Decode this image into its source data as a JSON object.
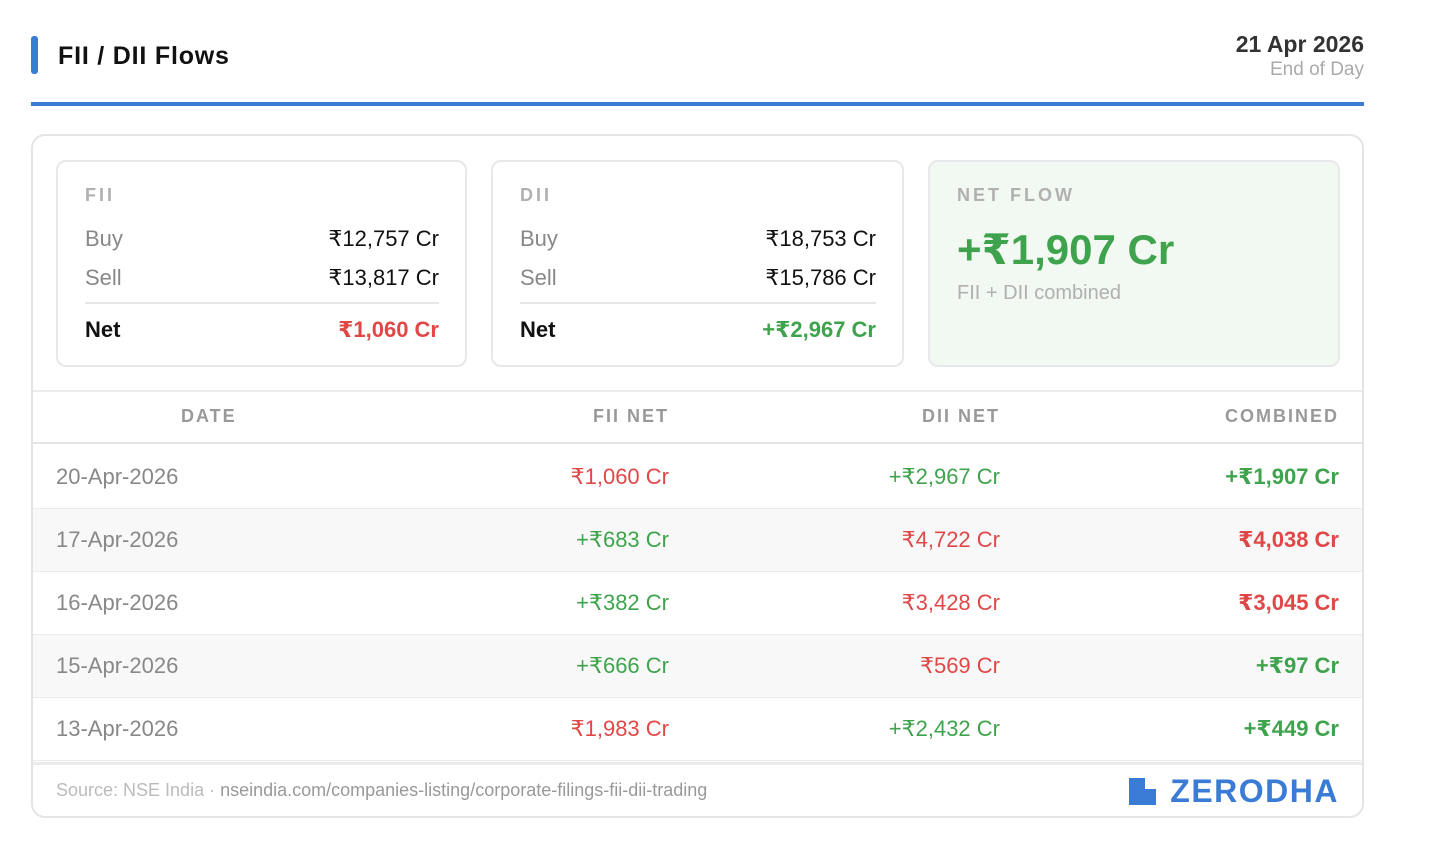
{
  "header": {
    "title": "FII / DII Flows",
    "date": "21 Apr 2026",
    "subtitle": "End of Day"
  },
  "summary": {
    "fii": {
      "label": "FII",
      "buy_label": "Buy",
      "buy": "₹12,757 Cr",
      "sell_label": "Sell",
      "sell": "₹13,817 Cr",
      "net_label": "Net",
      "net": "₹1,060 Cr"
    },
    "dii": {
      "label": "DII",
      "buy_label": "Buy",
      "buy": "₹18,753 Cr",
      "sell_label": "Sell",
      "sell": "₹15,786 Cr",
      "net_label": "Net",
      "net": "+₹2,967 Cr"
    },
    "net_flow": {
      "label": "NET FLOW",
      "value": "+₹1,907 Cr",
      "caption": "FII + DII combined"
    }
  },
  "table": {
    "columns": [
      "DATE",
      "FII NET",
      "DII NET",
      "COMBINED"
    ],
    "rows": [
      {
        "date": "20-Apr-2026",
        "fii": "₹1,060 Cr",
        "dii": "+₹2,967 Cr",
        "combined": "+₹1,907 Cr"
      },
      {
        "date": "17-Apr-2026",
        "fii": "+₹683 Cr",
        "dii": "₹4,722 Cr",
        "combined": "₹4,038 Cr"
      },
      {
        "date": "16-Apr-2026",
        "fii": "+₹382 Cr",
        "dii": "₹3,428 Cr",
        "combined": "₹3,045 Cr"
      },
      {
        "date": "15-Apr-2026",
        "fii": "+₹666 Cr",
        "dii": "₹569 Cr",
        "combined": "+₹97 Cr"
      },
      {
        "date": "13-Apr-2026",
        "fii": "₹1,983 Cr",
        "dii": "+₹2,432 Cr",
        "combined": "+₹449 Cr"
      }
    ]
  },
  "footer": {
    "source_label": "Source: NSE India",
    "separator": " · ",
    "source_url": "nseindia.com/companies-listing/corporate-filings-fii-dii-trading",
    "brand": "ZERODHA",
    "brand_icon": "zerodha-logo-icon"
  },
  "colors": {
    "accent": "#3a7bd5",
    "positive": "#3fa34d",
    "negative": "#e04848"
  }
}
